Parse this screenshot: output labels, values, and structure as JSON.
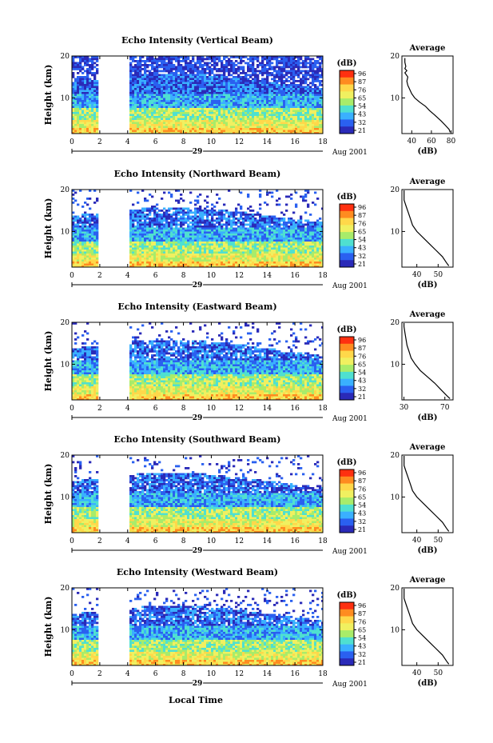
{
  "chart_data": {
    "type": "heatmap",
    "x_axis": {
      "ticks": [
        0,
        2,
        4,
        6,
        8,
        10,
        12,
        14,
        16,
        18
      ],
      "range": [
        0,
        18
      ],
      "date_label": "29",
      "month_year": "Aug 2001",
      "label": "Local Time"
    },
    "y_axis": {
      "label": "Height (km)",
      "ticks": [
        10,
        20
      ],
      "range": [
        1.5,
        20
      ]
    },
    "colorbar": {
      "unit": "(dB)",
      "ticks": [
        "96",
        "87",
        "76",
        "65",
        "54",
        "43",
        "32",
        "21"
      ],
      "colors": [
        "#ff3010",
        "#ff8c20",
        "#ffd84a",
        "#f0f060",
        "#a8ec6a",
        "#4fe0d0",
        "#3ab0ff",
        "#2a60f0",
        "#2a2ab8"
      ]
    },
    "gap_hours": [
      2,
      4
    ],
    "panels": [
      {
        "title": "Echo Intensity (Vertical Beam)",
        "cb_ticks": [
          "96",
          "87",
          "76",
          "65",
          "54",
          "43",
          "32",
          "21"
        ],
        "profile": {
          "title": "Average",
          "xlabel": "(dB)",
          "xticks": [
            40,
            60,
            80
          ],
          "xlim": [
            30,
            82
          ],
          "points": [
            [
              79,
              1.8
            ],
            [
              78,
              2.5
            ],
            [
              74,
              3.5
            ],
            [
              70,
              4.5
            ],
            [
              63,
              6.0
            ],
            [
              58,
              7.0
            ],
            [
              54,
              8.0
            ],
            [
              48,
              9.0
            ],
            [
              43,
              10.0
            ],
            [
              40,
              11.0
            ],
            [
              38,
              12.0
            ],
            [
              36,
              13.0
            ],
            [
              35,
              14.0
            ],
            [
              36,
              15.0
            ],
            [
              33,
              16.0
            ],
            [
              35,
              16.5
            ],
            [
              33,
              17.0
            ],
            [
              34,
              17.5
            ],
            [
              33,
              18.5
            ],
            [
              33,
              19.5
            ]
          ]
        }
      },
      {
        "title": "Echo Intensity (Northward Beam)",
        "cb_ticks": [
          "96",
          "87",
          "76",
          "65",
          "54",
          "43",
          "32",
          "21"
        ],
        "profile": {
          "title": "Average",
          "xlabel": "(dB)",
          "xticks": [
            40,
            50
          ],
          "xlim": [
            33,
            57
          ],
          "points": [
            [
              55,
              1.8
            ],
            [
              54,
              2.5
            ],
            [
              52,
              4.0
            ],
            [
              49,
              5.5
            ],
            [
              46,
              7.0
            ],
            [
              43,
              8.5
            ],
            [
              40,
              10.0
            ],
            [
              38,
              11.5
            ],
            [
              37,
              13.0
            ],
            [
              36,
              14.5
            ],
            [
              35,
              16.0
            ],
            [
              34,
              17.5
            ],
            [
              34,
              19.0
            ],
            [
              34,
              19.8
            ]
          ]
        }
      },
      {
        "title": "Echo Intensity (Eastward Beam)",
        "cb_ticks": [
          "96",
          "87",
          "76",
          "65",
          "54",
          "43",
          "32",
          "21"
        ],
        "profile": {
          "title": "Average",
          "xlabel": "(dB)",
          "xticks": [
            30,
            70
          ],
          "xlim": [
            28,
            78
          ],
          "points": [
            [
              75,
              1.8
            ],
            [
              72,
              2.5
            ],
            [
              66,
              4.0
            ],
            [
              60,
              5.5
            ],
            [
              53,
              7.0
            ],
            [
              46,
              8.5
            ],
            [
              41,
              10.0
            ],
            [
              37,
              11.5
            ],
            [
              35,
              13.0
            ],
            [
              33,
              14.5
            ],
            [
              32,
              16.0
            ],
            [
              31,
              17.5
            ],
            [
              30,
              19.0
            ],
            [
              30,
              19.8
            ]
          ]
        }
      },
      {
        "title": "Echo Intensity (Southward Beam)",
        "cb_ticks": [
          "96",
          "87",
          "76",
          "65",
          "54",
          "43",
          "32",
          "21"
        ],
        "profile": {
          "title": "Average",
          "xlabel": "(dB)",
          "xticks": [
            40,
            50
          ],
          "xlim": [
            33,
            57
          ],
          "points": [
            [
              55,
              1.8
            ],
            [
              54,
              2.5
            ],
            [
              52,
              4.0
            ],
            [
              49,
              5.5
            ],
            [
              46,
              7.0
            ],
            [
              43,
              8.5
            ],
            [
              40,
              10.0
            ],
            [
              38,
              11.5
            ],
            [
              37,
              13.0
            ],
            [
              36,
              14.5
            ],
            [
              35,
              16.0
            ],
            [
              34,
              17.5
            ],
            [
              34,
              19.0
            ],
            [
              34,
              19.8
            ]
          ]
        }
      },
      {
        "title": "Echo Intensity (Westward Beam)",
        "cb_ticks": [
          "96",
          "87",
          "76",
          "65",
          "54",
          "43",
          "32",
          "21"
        ],
        "profile": {
          "title": "Average",
          "xlabel": "(dB)",
          "xticks": [
            40,
            50
          ],
          "xlim": [
            33,
            57
          ],
          "points": [
            [
              55,
              1.8
            ],
            [
              54,
              2.5
            ],
            [
              52,
              4.0
            ],
            [
              49,
              5.5
            ],
            [
              46,
              7.0
            ],
            [
              43,
              8.5
            ],
            [
              40,
              10.0
            ],
            [
              38,
              11.5
            ],
            [
              37,
              13.0
            ],
            [
              36,
              14.5
            ],
            [
              35,
              16.0
            ],
            [
              34,
              17.5
            ],
            [
              34,
              19.0
            ],
            [
              34,
              19.8
            ]
          ]
        }
      }
    ]
  }
}
